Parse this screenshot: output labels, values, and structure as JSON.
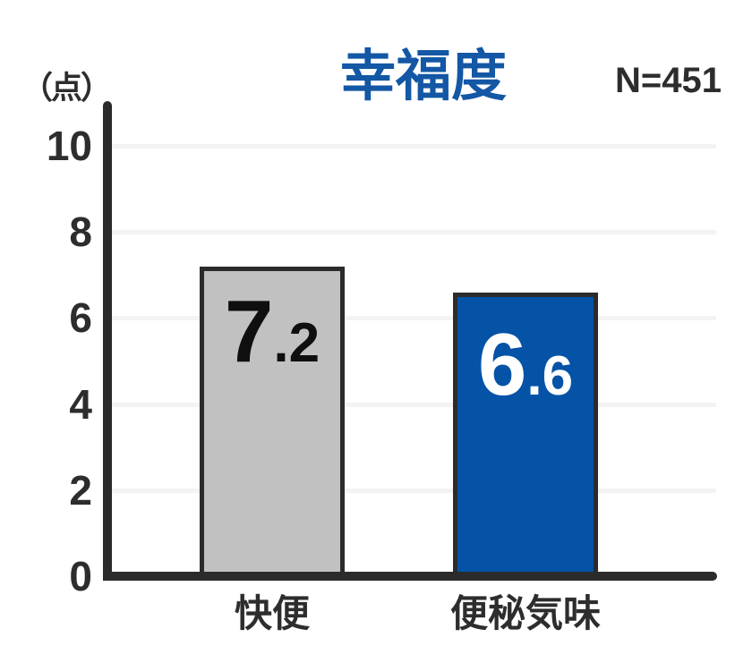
{
  "chart_data": {
    "type": "bar",
    "title": "幸福度",
    "n_label": "N=451",
    "unit_label": "（点）",
    "categories": [
      "快便",
      "便秘気味"
    ],
    "values": [
      7.2,
      6.6
    ],
    "ylim": [
      0,
      10
    ],
    "yticks": [
      10,
      8,
      6,
      4,
      2,
      0
    ],
    "grid": true,
    "legend": "none",
    "colors": {
      "title": "#1357a5",
      "axis": "#2b2b2b",
      "gridline": "#f3f3f3",
      "text": "#2d2d2d",
      "bar_fills": [
        "#c1c1c1",
        "#0553a6"
      ],
      "bar_border": "#2b2b2b",
      "bar_label_colors": [
        "#0f0f0f",
        "#ffffff"
      ]
    }
  }
}
